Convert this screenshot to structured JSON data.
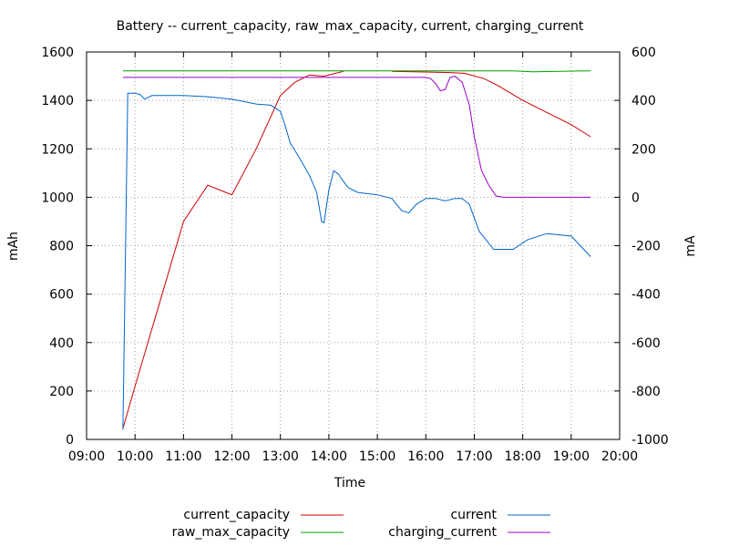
{
  "chart_data": {
    "type": "line",
    "title": "Battery -- current_capacity, raw_max_capacity, current, charging_current",
    "xlabel": "Time",
    "ylabel_left": "mAh",
    "ylabel_right": "mA",
    "x_unit": "hours",
    "xlim": [
      9.0,
      20.0
    ],
    "ylim_left": [
      0,
      1600
    ],
    "ylim_right": [
      -1000,
      600
    ],
    "x_ticks": [
      {
        "value": 9,
        "label": "09:00"
      },
      {
        "value": 10,
        "label": "10:00"
      },
      {
        "value": 11,
        "label": "11:00"
      },
      {
        "value": 12,
        "label": "12:00"
      },
      {
        "value": 13,
        "label": "13:00"
      },
      {
        "value": 14,
        "label": "14:00"
      },
      {
        "value": 15,
        "label": "15:00"
      },
      {
        "value": 16,
        "label": "16:00"
      },
      {
        "value": 17,
        "label": "17:00"
      },
      {
        "value": 18,
        "label": "18:00"
      },
      {
        "value": 19,
        "label": "19:00"
      },
      {
        "value": 20,
        "label": "20:00"
      }
    ],
    "y_left_ticks": [
      {
        "value": 0,
        "label": "0"
      },
      {
        "value": 200,
        "label": "200"
      },
      {
        "value": 400,
        "label": "400"
      },
      {
        "value": 600,
        "label": "600"
      },
      {
        "value": 800,
        "label": "800"
      },
      {
        "value": 1000,
        "label": "1000"
      },
      {
        "value": 1200,
        "label": "1200"
      },
      {
        "value": 1400,
        "label": "1400"
      },
      {
        "value": 1600,
        "label": "1600"
      }
    ],
    "y_right_ticks": [
      {
        "value": 600,
        "label": "600"
      },
      {
        "value": 400,
        "label": "400"
      },
      {
        "value": 200,
        "label": "200"
      },
      {
        "value": 0,
        "label": "0"
      },
      {
        "value": -200,
        "label": "-200"
      },
      {
        "value": -400,
        "label": "-400"
      },
      {
        "value": -600,
        "label": "-600"
      },
      {
        "value": -800,
        "label": "-800"
      },
      {
        "value": -1000,
        "label": "-1000"
      }
    ],
    "grid": true,
    "legend_position": "bottom",
    "series": [
      {
        "name": "current_capacity",
        "axis": "left",
        "color": "#cc0000",
        "points": [
          [
            9.75,
            45
          ],
          [
            10.0,
            220
          ],
          [
            10.5,
            560
          ],
          [
            11.0,
            900
          ],
          [
            11.5,
            1050
          ],
          [
            12.0,
            1010
          ],
          [
            12.5,
            1200
          ],
          [
            13.0,
            1420
          ],
          [
            13.3,
            1475
          ],
          [
            13.6,
            1505
          ],
          [
            13.9,
            1500
          ],
          [
            14.1,
            1510
          ],
          [
            14.3,
            1520
          ],
          null,
          [
            15.3,
            1520
          ],
          [
            16.0,
            1517
          ],
          [
            16.5,
            1515
          ],
          [
            16.8,
            1512
          ],
          [
            17.2,
            1490
          ],
          [
            17.5,
            1460
          ],
          [
            18.0,
            1400
          ],
          [
            18.5,
            1350
          ],
          [
            19.0,
            1300
          ],
          [
            19.4,
            1250
          ]
        ]
      },
      {
        "name": "raw_max_capacity",
        "axis": "left",
        "color": "#00a000",
        "points": [
          [
            9.75,
            1522
          ],
          [
            15.0,
            1522
          ],
          [
            17.8,
            1522
          ],
          [
            18.2,
            1518
          ],
          [
            19.4,
            1522
          ]
        ]
      },
      {
        "name": "current",
        "axis": "right",
        "color": "#0066cc",
        "points": [
          [
            9.75,
            -960
          ],
          [
            9.85,
            430
          ],
          [
            10.0,
            430
          ],
          [
            10.1,
            425
          ],
          [
            10.2,
            405
          ],
          [
            10.35,
            420
          ],
          [
            10.5,
            420
          ],
          [
            11.0,
            420
          ],
          [
            11.5,
            415
          ],
          [
            12.0,
            405
          ],
          [
            12.5,
            385
          ],
          [
            12.8,
            380
          ],
          [
            13.0,
            355
          ],
          [
            13.1,
            295
          ],
          [
            13.2,
            225
          ],
          [
            13.4,
            160
          ],
          [
            13.6,
            90
          ],
          [
            13.75,
            20
          ],
          [
            13.85,
            -100
          ],
          [
            13.9,
            -105
          ],
          [
            14.0,
            30
          ],
          [
            14.1,
            110
          ],
          [
            14.2,
            95
          ],
          [
            14.3,
            65
          ],
          [
            14.4,
            40
          ],
          [
            14.6,
            20
          ],
          [
            15.0,
            10
          ],
          [
            15.3,
            -5
          ],
          [
            15.5,
            -55
          ],
          [
            15.65,
            -65
          ],
          [
            15.8,
            -30
          ],
          [
            16.0,
            -5
          ],
          [
            16.2,
            -5
          ],
          [
            16.4,
            -15
          ],
          [
            16.6,
            -5
          ],
          [
            16.75,
            -5
          ],
          [
            16.9,
            -30
          ],
          [
            17.1,
            -140
          ],
          [
            17.4,
            -215
          ],
          [
            17.8,
            -215
          ],
          [
            18.1,
            -175
          ],
          [
            18.5,
            -150
          ],
          [
            19.0,
            -160
          ],
          [
            19.4,
            -245
          ]
        ]
      },
      {
        "name": "charging_current",
        "axis": "right",
        "color": "#9900cc",
        "points": [
          [
            9.75,
            495
          ],
          [
            14.5,
            495
          ],
          [
            15.5,
            495
          ],
          [
            16.0,
            495
          ],
          [
            16.1,
            490
          ],
          [
            16.2,
            470
          ],
          [
            16.3,
            440
          ],
          [
            16.4,
            445
          ],
          [
            16.5,
            495
          ],
          [
            16.6,
            500
          ],
          [
            16.75,
            475
          ],
          [
            16.9,
            380
          ],
          [
            17.0,
            250
          ],
          [
            17.15,
            110
          ],
          [
            17.3,
            50
          ],
          [
            17.45,
            5
          ],
          [
            17.6,
            0
          ],
          [
            19.4,
            0
          ]
        ]
      }
    ]
  }
}
